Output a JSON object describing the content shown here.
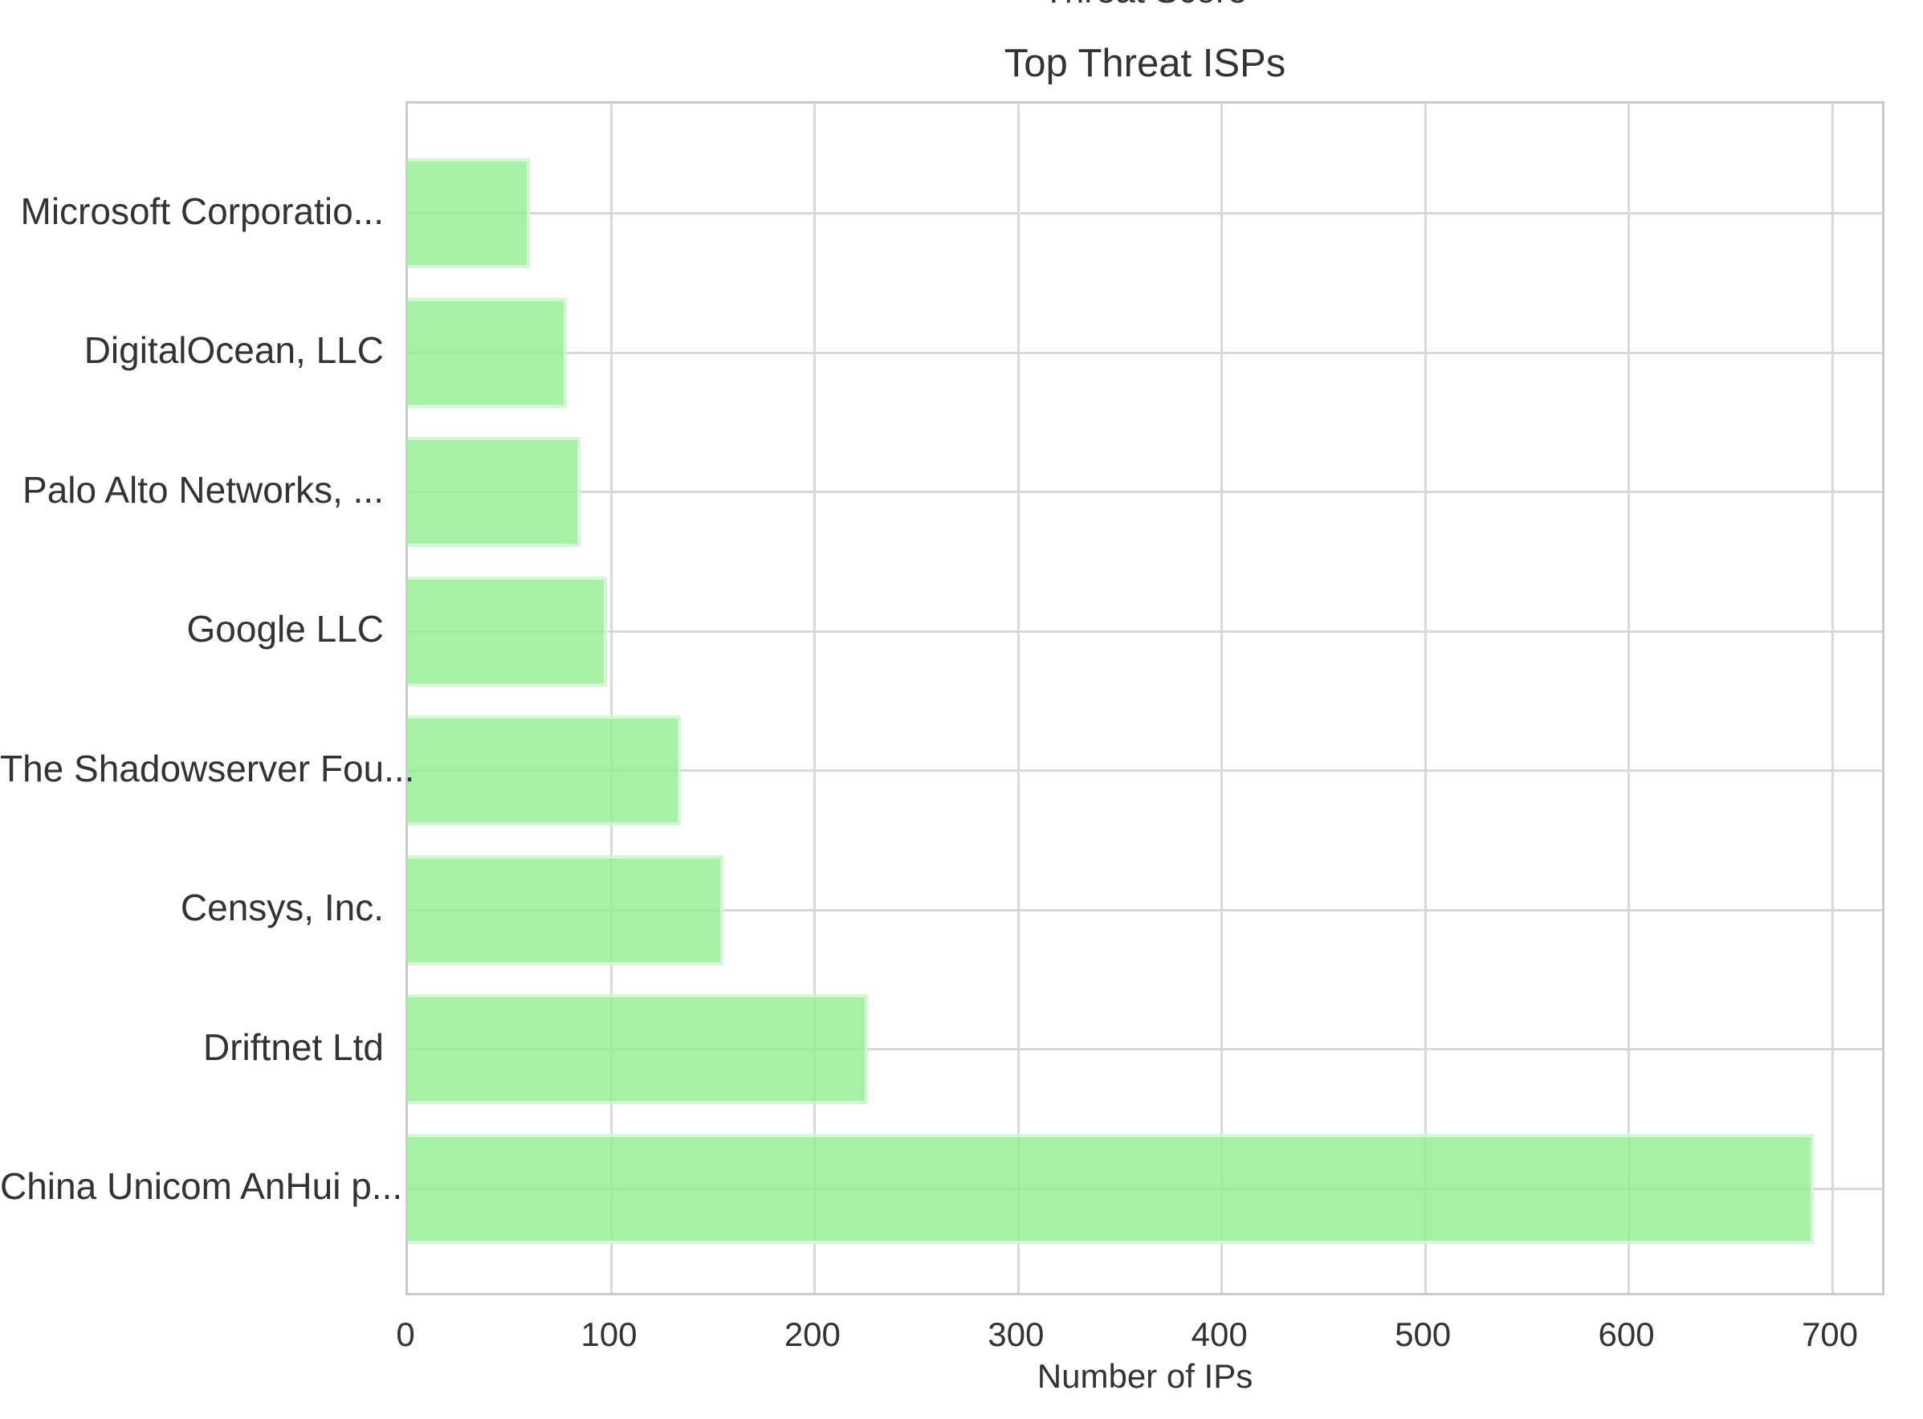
{
  "page": {
    "cropped_label_above": "Threat Score"
  },
  "colors": {
    "bar_fill": "#90EE90",
    "bar_fill_opacity": 0.8,
    "gridline": "#d9d9d9",
    "plot_border": "#cbcbcb",
    "text": "#333333"
  },
  "chart_data": {
    "type": "bar",
    "orientation": "horizontal",
    "title": "Top Threat ISPs",
    "xlabel": "Number of IPs",
    "ylabel": "",
    "categories_top_to_bottom": [
      "Microsoft Corporatio...",
      "DigitalOcean, LLC",
      "Palo Alto Networks, ...",
      "Google LLC",
      "The Shadowserver Fou...",
      "Censys, Inc.",
      "Driftnet Ltd",
      "China Unicom AnHui p..."
    ],
    "values": [
      60,
      78,
      85,
      98,
      134,
      155,
      226,
      691
    ],
    "x_ticks": [
      0,
      100,
      200,
      300,
      400,
      500,
      600,
      700
    ],
    "xlim": [
      0,
      727
    ],
    "grid": true,
    "legend": false
  }
}
